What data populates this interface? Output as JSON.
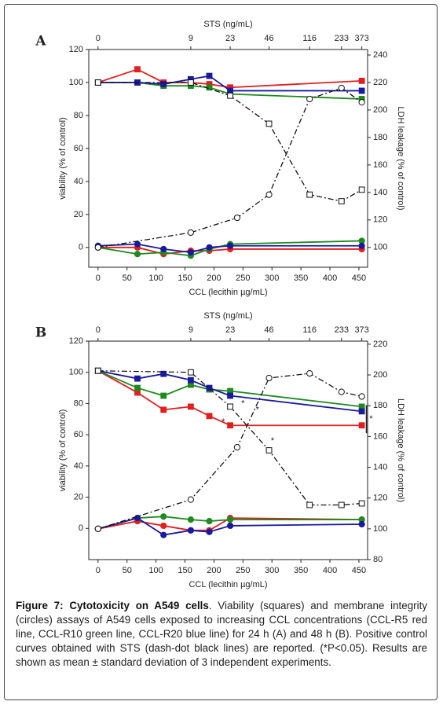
{
  "chart_data": [
    {
      "type": "line",
      "panel": "A",
      "x_label": "CCL (lecithin µg/mL)",
      "y_label": "viability (% of control)",
      "y2_label": "LDH leakage (% of control)",
      "top_label": "STS (ng/mL)",
      "xlim": [
        -16,
        465
      ],
      "xticks": [
        0,
        50,
        100,
        150,
        200,
        250,
        300,
        350,
        400,
        450
      ],
      "top_ticks": [
        {
          "value": 0,
          "label": "0"
        },
        {
          "value": 160,
          "label": "9"
        },
        {
          "value": 228,
          "label": "23"
        },
        {
          "value": 295,
          "label": "46"
        },
        {
          "value": 365,
          "label": "116"
        },
        {
          "value": 420,
          "label": "233"
        },
        {
          "value": 455,
          "label": "373"
        }
      ],
      "ylim": [
        -12,
        120
      ],
      "yticks": [
        0,
        20,
        40,
        60,
        80,
        100,
        120
      ],
      "y2lim": [
        85.6,
        244
      ],
      "y2ticks": [
        100,
        120,
        140,
        160,
        180,
        200,
        220,
        240
      ],
      "series": [
        {
          "color": "#e01f1f",
          "marker": "square",
          "x": [
            0,
            68,
            113,
            160,
            192,
            228,
            455
          ],
          "values": [
            100,
            108,
            100,
            100,
            99,
            97,
            101
          ]
        },
        {
          "color": "#1f8a1f",
          "marker": "square",
          "x": [
            0,
            68,
            113,
            160,
            192,
            228,
            455
          ],
          "values": [
            100,
            100,
            98,
            98,
            97,
            93,
            90
          ]
        },
        {
          "color": "#1a1a9c",
          "marker": "square",
          "x": [
            0,
            68,
            113,
            160,
            192,
            228,
            455
          ],
          "values": [
            100,
            100,
            99,
            102,
            104,
            95,
            95
          ]
        },
        {
          "color": "#111111",
          "marker": "square",
          "open": true,
          "dash": true,
          "x": [
            0,
            160,
            228,
            295,
            365,
            420,
            455
          ],
          "values": [
            100,
            100,
            92,
            75,
            32,
            28,
            35
          ]
        },
        {
          "color": "#e01f1f",
          "marker": "circle",
          "axis": "y2",
          "x": [
            0,
            68,
            113,
            160,
            192,
            228,
            455
          ],
          "values": [
            100,
            100,
            95.2,
            97.6,
            97.6,
            98.8,
            98.8
          ]
        },
        {
          "color": "#1f8a1f",
          "marker": "circle",
          "axis": "y2",
          "x": [
            0,
            68,
            113,
            160,
            192,
            228,
            455
          ],
          "values": [
            100,
            95.2,
            96.4,
            94,
            98.8,
            102.4,
            104.8
          ]
        },
        {
          "color": "#1a1a9c",
          "marker": "circle",
          "axis": "y2",
          "x": [
            0,
            68,
            113,
            160,
            192,
            228,
            455
          ],
          "values": [
            101.2,
            102.4,
            98.8,
            96.4,
            100,
            101.2,
            101.2
          ]
        },
        {
          "color": "#111111",
          "marker": "circle",
          "open": true,
          "dash": true,
          "axis": "y2",
          "x": [
            0,
            160,
            240,
            295,
            365,
            420,
            455
          ],
          "values": [
            100,
            110.8,
            121.6,
            138.4,
            208,
            216,
            205.6
          ]
        }
      ]
    },
    {
      "type": "line",
      "panel": "B",
      "x_label": "CCL (lecithin µg/mL)",
      "y_label": "viability (% of control)",
      "y2_label": "LDH leakage (% of control)",
      "top_label": "STS (ng/mL)",
      "xlim": [
        -16,
        465
      ],
      "xticks": [
        0,
        50,
        100,
        150,
        200,
        250,
        300,
        350,
        400,
        450
      ],
      "top_ticks": [
        {
          "value": 0,
          "label": "0"
        },
        {
          "value": 160,
          "label": "9"
        },
        {
          "value": 228,
          "label": "23"
        },
        {
          "value": 295,
          "label": "46"
        },
        {
          "value": 365,
          "label": "116"
        },
        {
          "value": 420,
          "label": "233"
        },
        {
          "value": 455,
          "label": "373"
        }
      ],
      "ylim": [
        -20,
        120
      ],
      "yticks": [
        0,
        20,
        40,
        60,
        80,
        100,
        120
      ],
      "y2lim": [
        80,
        222
      ],
      "y2ticks": [
        80,
        100,
        120,
        140,
        160,
        180,
        200,
        220
      ],
      "annotations": [
        "*",
        "*",
        "*",
        "*",
        "*"
      ],
      "series": [
        {
          "color": "#e01f1f",
          "marker": "square",
          "x": [
            0,
            68,
            113,
            160,
            192,
            228,
            455
          ],
          "values": [
            101,
            87,
            76,
            78,
            72,
            66,
            66
          ]
        },
        {
          "color": "#1f8a1f",
          "marker": "square",
          "x": [
            0,
            68,
            113,
            160,
            192,
            228,
            455
          ],
          "values": [
            101,
            90,
            85,
            92,
            89,
            88,
            78
          ]
        },
        {
          "color": "#1a1a9c",
          "marker": "square",
          "x": [
            0,
            68,
            113,
            160,
            192,
            228,
            455
          ],
          "values": [
            101,
            96,
            99,
            95,
            90,
            85,
            75
          ]
        },
        {
          "color": "#111111",
          "marker": "square",
          "open": true,
          "dash": true,
          "x": [
            0,
            160,
            228,
            295,
            365,
            420,
            455
          ],
          "values": [
            101,
            100,
            78,
            50,
            15,
            15,
            16
          ]
        },
        {
          "color": "#e01f1f",
          "marker": "circle",
          "axis": "y2",
          "x": [
            0,
            68,
            113,
            160,
            192,
            228,
            455
          ],
          "values": [
            100,
            105,
            102,
            99,
            99,
            107,
            106
          ]
        },
        {
          "color": "#1f8a1f",
          "marker": "circle",
          "axis": "y2",
          "x": [
            0,
            68,
            113,
            160,
            192,
            228,
            455
          ],
          "values": [
            100,
            107,
            108,
            106,
            105,
            106,
            106
          ]
        },
        {
          "color": "#1a1a9c",
          "marker": "circle",
          "axis": "y2",
          "x": [
            0,
            68,
            113,
            160,
            192,
            228,
            455
          ],
          "values": [
            100,
            107,
            96,
            99,
            98,
            102,
            103
          ]
        },
        {
          "color": "#111111",
          "marker": "circle",
          "open": true,
          "dash": true,
          "axis": "y2",
          "x": [
            0,
            160,
            240,
            295,
            365,
            420,
            455
          ],
          "values": [
            100,
            119,
            153,
            198,
            201,
            189,
            186
          ]
        }
      ]
    }
  ],
  "caption": {
    "title": "Figure 7: Cytotoxicity on A549 cells",
    "text": ". Viability (squares) and membrane integrity (circles) assays of A549 cells exposed to increasing CCL concentrations (CCL-R5 red line, CCL-R10 green line, CCL-R20 blue line) for 24 h (A) and 48 h (B). Positive control curves obtained with STS (dash-dot black lines) are reported. (*P<0.05). Results are shown as mean ± standard deviation of 3 independent experiments."
  }
}
